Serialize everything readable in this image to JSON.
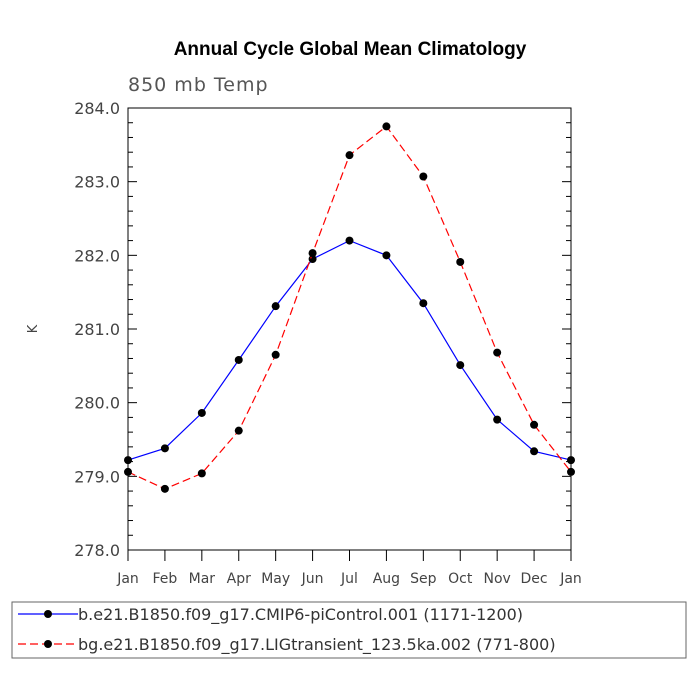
{
  "chart_data": {
    "type": "line",
    "title": "Annual Cycle Global Mean Climatology",
    "subtitle": "850 mb Temp",
    "xlabel": "",
    "ylabel": "K",
    "categories": [
      "Jan",
      "Feb",
      "Mar",
      "Apr",
      "May",
      "Jun",
      "Jul",
      "Aug",
      "Sep",
      "Oct",
      "Nov",
      "Dec",
      "Jan"
    ],
    "ylim": [
      278.0,
      284.0
    ],
    "yticks": [
      "278.0",
      "279.0",
      "280.0",
      "281.0",
      "282.0",
      "283.0",
      "284.0"
    ],
    "grid": false,
    "legend_position": "bottom",
    "series": [
      {
        "name": "b.e21.B1850.f09_g17.CMIP6-piControl.001 (1171-1200)",
        "color": "#0000ff",
        "line_style": "solid",
        "values": [
          279.22,
          279.38,
          279.86,
          280.58,
          281.31,
          281.95,
          282.2,
          282.0,
          281.35,
          280.51,
          279.77,
          279.34,
          279.22
        ]
      },
      {
        "name": "bg.e21.B1850.f09_g17.LIGtransient_123.5ka.002 (771-800)",
        "color": "#ff0000",
        "line_style": "dashed",
        "values": [
          279.06,
          278.83,
          279.04,
          279.62,
          280.65,
          282.03,
          283.36,
          283.75,
          283.07,
          281.91,
          280.68,
          279.7,
          279.06
        ]
      }
    ]
  }
}
